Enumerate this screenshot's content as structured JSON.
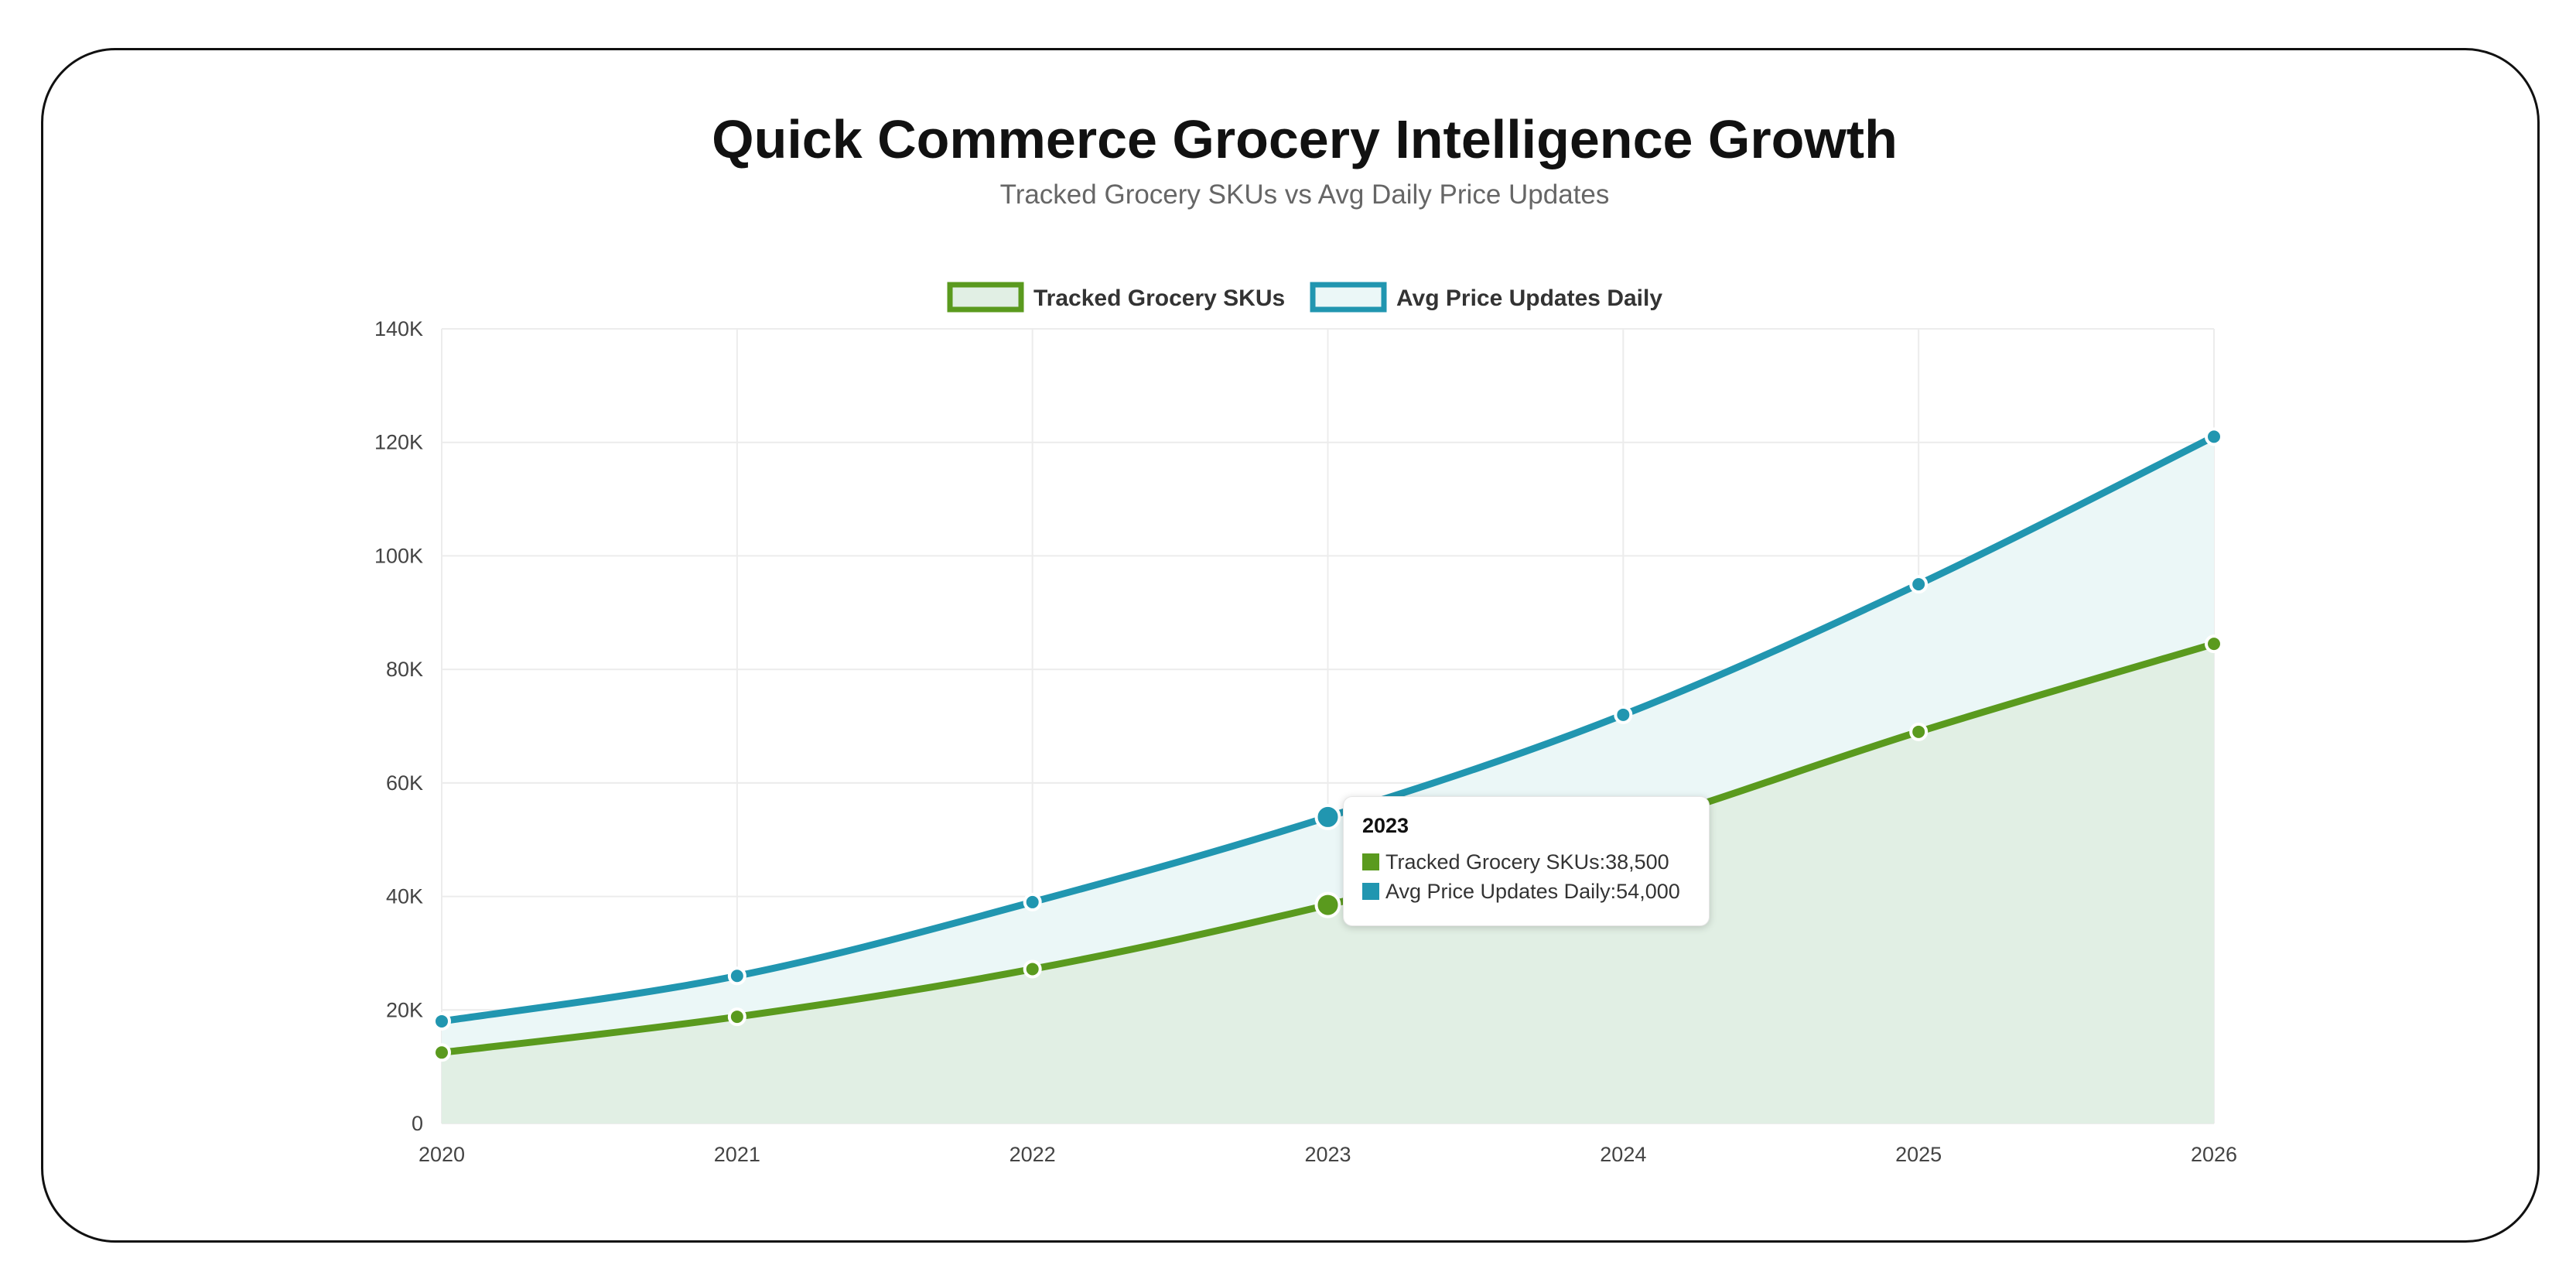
{
  "chart_data": {
    "type": "area",
    "title": "Quick Commerce Grocery Intelligence Growth",
    "subtitle": "Tracked Grocery SKUs vs Avg Daily Price Updates",
    "x": [
      "2020",
      "2021",
      "2022",
      "2023",
      "2024",
      "2025",
      "2026"
    ],
    "series": [
      {
        "name": "Tracked Grocery SKUs",
        "values": [
          12500,
          18800,
          27200,
          38500,
          52000,
          69000,
          84500
        ],
        "color": "#5a9a1e",
        "fill": "#e1efe4"
      },
      {
        "name": "Avg Price Updates Daily",
        "values": [
          18000,
          26000,
          39000,
          54000,
          72000,
          95000,
          121000
        ],
        "color": "#2196b0",
        "fill": "#ebf7f7"
      }
    ],
    "ylim": [
      0,
      140000
    ],
    "yticks": [
      0,
      20000,
      40000,
      60000,
      80000,
      100000,
      120000,
      140000
    ],
    "ytick_labels": [
      "0",
      "20K",
      "40K",
      "60K",
      "80K",
      "100K",
      "120K",
      "140K"
    ],
    "legend_position": "top-center",
    "grid": true
  },
  "tooltip": {
    "title": "2023",
    "rows": [
      {
        "label": "Tracked Grocery SKUs",
        "value": "38,500",
        "color": "#5a9a1e"
      },
      {
        "label": "Avg Price Updates Daily",
        "value": "54,000",
        "color": "#2196b0"
      }
    ],
    "active_index": 3
  }
}
